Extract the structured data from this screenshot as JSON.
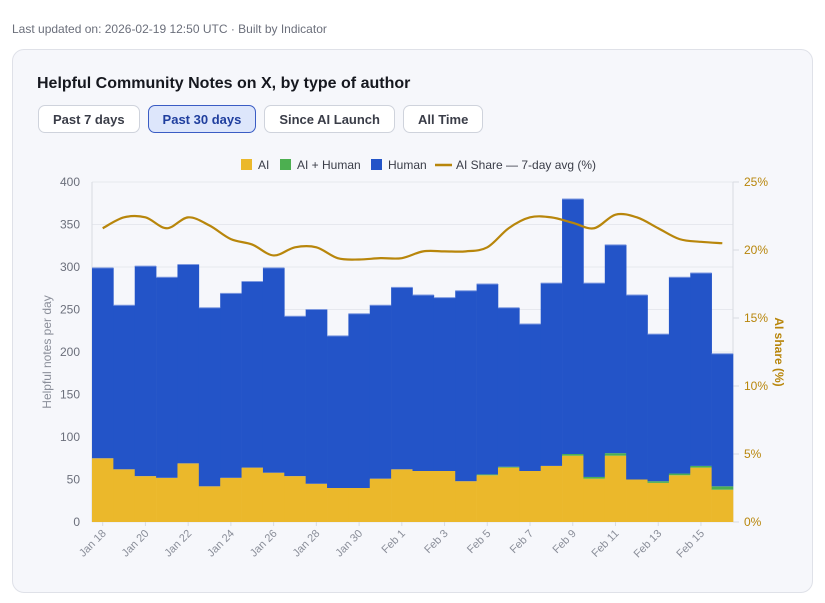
{
  "header": {
    "updated_text": "Last updated on: 2026-02-19 12:50 UTC · Built by Indicator"
  },
  "card": {
    "title": "Helpful Community Notes on X, by type of author",
    "range_buttons": [
      {
        "label": "Past 7 days",
        "active": false
      },
      {
        "label": "Past 30 days",
        "active": true
      },
      {
        "label": "Since AI Launch",
        "active": false
      },
      {
        "label": "All Time",
        "active": false
      }
    ]
  },
  "colors": {
    "ai": "#ebb82b",
    "ai_human": "#4caf50",
    "human": "#2354c8",
    "share_line": "#b8860b",
    "axis_text": "#6b6f7b",
    "right_axis_text": "#b8860b"
  },
  "chart_data": {
    "type": "bar",
    "stacked": true,
    "title": "Helpful Community Notes on X, by type of author",
    "categories": [
      "Jan 18",
      "Jan 19",
      "Jan 20",
      "Jan 21",
      "Jan 22",
      "Jan 23",
      "Jan 24",
      "Jan 25",
      "Jan 26",
      "Jan 27",
      "Jan 28",
      "Jan 29",
      "Jan 30",
      "Jan 31",
      "Feb 1",
      "Feb 2",
      "Feb 3",
      "Feb 4",
      "Feb 5",
      "Feb 6",
      "Feb 7",
      "Feb 8",
      "Feb 9",
      "Feb 10",
      "Feb 11",
      "Feb 12",
      "Feb 13",
      "Feb 14",
      "Feb 15",
      "Feb 16"
    ],
    "xtick_labels": [
      "Jan 18",
      "Jan 20",
      "Jan 22",
      "Jan 24",
      "Jan 26",
      "Jan 28",
      "Jan 30",
      "Feb 1",
      "Feb 3",
      "Feb 5",
      "Feb 7",
      "Feb 9",
      "Feb 11",
      "Feb 13",
      "Feb 15"
    ],
    "series": [
      {
        "name": "AI",
        "values": [
          75,
          62,
          54,
          52,
          69,
          42,
          52,
          64,
          58,
          54,
          45,
          40,
          40,
          51,
          62,
          60,
          60,
          48,
          55,
          64,
          60,
          66,
          78,
          51,
          78,
          50,
          46,
          55,
          64,
          38
        ]
      },
      {
        "name": "AI + Human",
        "values": [
          0,
          0,
          0,
          0,
          0,
          0,
          0,
          0,
          0,
          0,
          0,
          0,
          0,
          0,
          0,
          0,
          0,
          0,
          1,
          1,
          0,
          0,
          2,
          2,
          3,
          0,
          2,
          2,
          2,
          4
        ]
      },
      {
        "name": "Human",
        "values": [
          224,
          193,
          247,
          236,
          234,
          210,
          217,
          219,
          241,
          188,
          205,
          179,
          205,
          204,
          214,
          207,
          204,
          224,
          224,
          187,
          173,
          215,
          300,
          228,
          245,
          217,
          173,
          231,
          227,
          156
        ]
      }
    ],
    "line_series": {
      "name": "AI Share — 7-day avg (%)",
      "axis": "right",
      "values": [
        21.6,
        22.4,
        22.4,
        21.6,
        22.4,
        21.8,
        20.8,
        20.4,
        19.6,
        20.2,
        20.2,
        19.4,
        19.3,
        19.4,
        19.4,
        19.9,
        19.9,
        19.9,
        20.2,
        21.6,
        22.4,
        22.4,
        22.0,
        21.6,
        22.6,
        22.4,
        21.6,
        20.8,
        20.6,
        20.5
      ]
    },
    "ylabel": "Helpful notes per day",
    "ylim": [
      0,
      400
    ],
    "yticks": [
      0,
      50,
      100,
      150,
      200,
      250,
      300,
      350,
      400
    ],
    "y2label": "AI share (%)",
    "y2lim": [
      0,
      25
    ],
    "y2ticks": [
      "0%",
      "5%",
      "10%",
      "15%",
      "20%",
      "25%"
    ],
    "legend": {
      "position": "top",
      "entries": [
        "AI",
        "AI + Human",
        "Human",
        "AI Share — 7-day avg (%)"
      ]
    },
    "grid": true
  }
}
